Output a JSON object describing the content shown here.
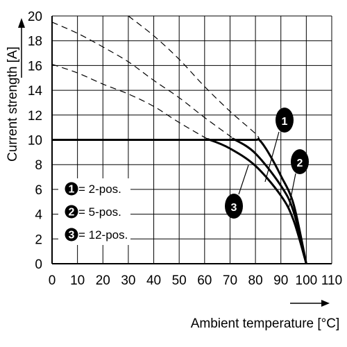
{
  "chart_data": {
    "type": "line",
    "xlabel": "Ambient temperature [°C]",
    "ylabel": "Current strength [A]",
    "xlim": [
      0,
      110
    ],
    "ylim": [
      0,
      20
    ],
    "x_ticks": [
      "0",
      "10",
      "20",
      "30",
      "40",
      "50",
      "60",
      "70",
      "80",
      "90",
      "100",
      "110"
    ],
    "y_ticks": [
      "0",
      "2",
      "4",
      "6",
      "8",
      "10",
      "12",
      "14",
      "16",
      "18",
      "20"
    ],
    "grid": true,
    "legend_placement": "bottom-left",
    "legend": [
      {
        "marker": "1",
        "text": "= 2-pos."
      },
      {
        "marker": "2",
        "text": "= 5-pos."
      },
      {
        "marker": "3",
        "text": "= 12-pos."
      }
    ],
    "series": [
      {
        "name": "2-pos.",
        "marker": "1",
        "x": [
          0,
          10,
          20,
          30,
          40,
          50,
          60,
          70,
          80,
          81.5,
          85,
          90,
          95,
          100
        ],
        "y": [
          10,
          10,
          10,
          10,
          10,
          10,
          10,
          10,
          10,
          10,
          9.0,
          7.1,
          4.8,
          0
        ],
        "dashed_extension": {
          "x": [
            30,
            40,
            50,
            60,
            70,
            80,
            81.5
          ],
          "y": [
            20,
            18.4,
            16.5,
            14.3,
            12.3,
            10.5,
            10
          ]
        }
      },
      {
        "name": "5-pos.",
        "marker": "2",
        "x": [
          0,
          10,
          20,
          30,
          40,
          50,
          60,
          70,
          72,
          80,
          90,
          95,
          100
        ],
        "y": [
          10,
          10,
          10,
          10,
          10,
          10,
          10,
          10,
          10,
          8.9,
          6.3,
          4.2,
          0
        ],
        "dashed_extension": {
          "x": [
            0,
            10,
            20,
            30,
            40,
            50,
            60,
            70,
            72
          ],
          "y": [
            19.5,
            18.6,
            17.5,
            16.3,
            14.8,
            13.4,
            11.8,
            10.3,
            10
          ]
        }
      },
      {
        "name": "12-pos.",
        "marker": "3",
        "x": [
          0,
          10,
          20,
          30,
          40,
          50,
          60,
          62,
          70,
          80,
          90,
          95,
          100
        ],
        "y": [
          10,
          10,
          10,
          10,
          10,
          10,
          10,
          10,
          9.3,
          7.9,
          5.5,
          3.5,
          0
        ],
        "dashed_extension": {
          "x": [
            0,
            10,
            20,
            30,
            40,
            50,
            60,
            62
          ],
          "y": [
            16.1,
            15.4,
            14.5,
            13.7,
            12.7,
            11.4,
            10.2,
            10
          ]
        }
      }
    ],
    "callouts": [
      {
        "marker": "1",
        "series": "2-pos."
      },
      {
        "marker": "2",
        "series": "5-pos."
      },
      {
        "marker": "3",
        "series": "12-pos."
      }
    ]
  }
}
